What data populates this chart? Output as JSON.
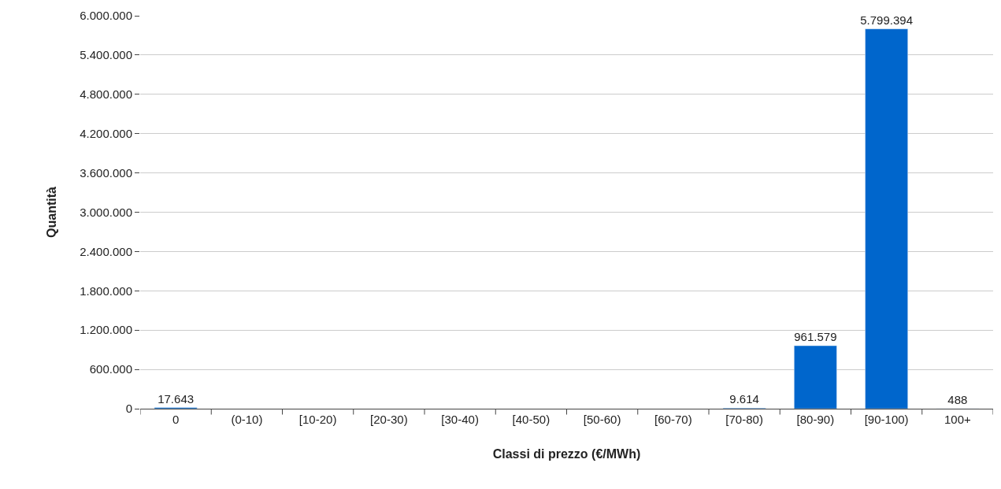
{
  "chart_data": {
    "type": "bar",
    "xlabel": "Classi di prezzo (€/MWh)",
    "ylabel": "Quantità",
    "categories": [
      "0",
      "(0-10)",
      "[10-20)",
      "[20-30)",
      "[30-40)",
      "[40-50)",
      "[50-60)",
      "[60-70)",
      "[70-80)",
      "[80-90)",
      "[90-100)",
      "100+"
    ],
    "values": [
      17643,
      null,
      null,
      null,
      null,
      null,
      null,
      null,
      9614,
      961579,
      5799394,
      488
    ],
    "value_labels": [
      "17.643",
      null,
      null,
      null,
      null,
      null,
      null,
      null,
      "9.614",
      "961.579",
      "5.799.394",
      "488"
    ],
    "color": "#0066cc",
    "ylim": [
      0,
      6000000
    ],
    "yticks": [
      0,
      {
        "value": 600000,
        "label": "600.000"
      },
      {
        "value": 1200000,
        "label": "1.200.000"
      },
      {
        "value": 1800000,
        "label": "1.800.000"
      },
      {
        "value": 2400000,
        "label": "2.400.000"
      },
      {
        "value": 3000000,
        "label": "3.000.000"
      },
      {
        "value": 3600000,
        "label": "3.600.000"
      },
      {
        "value": 4200000,
        "label": "4.200.000"
      },
      {
        "value": 4800000,
        "label": "4.800.000"
      },
      {
        "value": 5400000,
        "label": "5.400.000"
      },
      {
        "value": 6000000,
        "label": "6.000.000"
      }
    ],
    "grid": "y",
    "legend": false
  }
}
